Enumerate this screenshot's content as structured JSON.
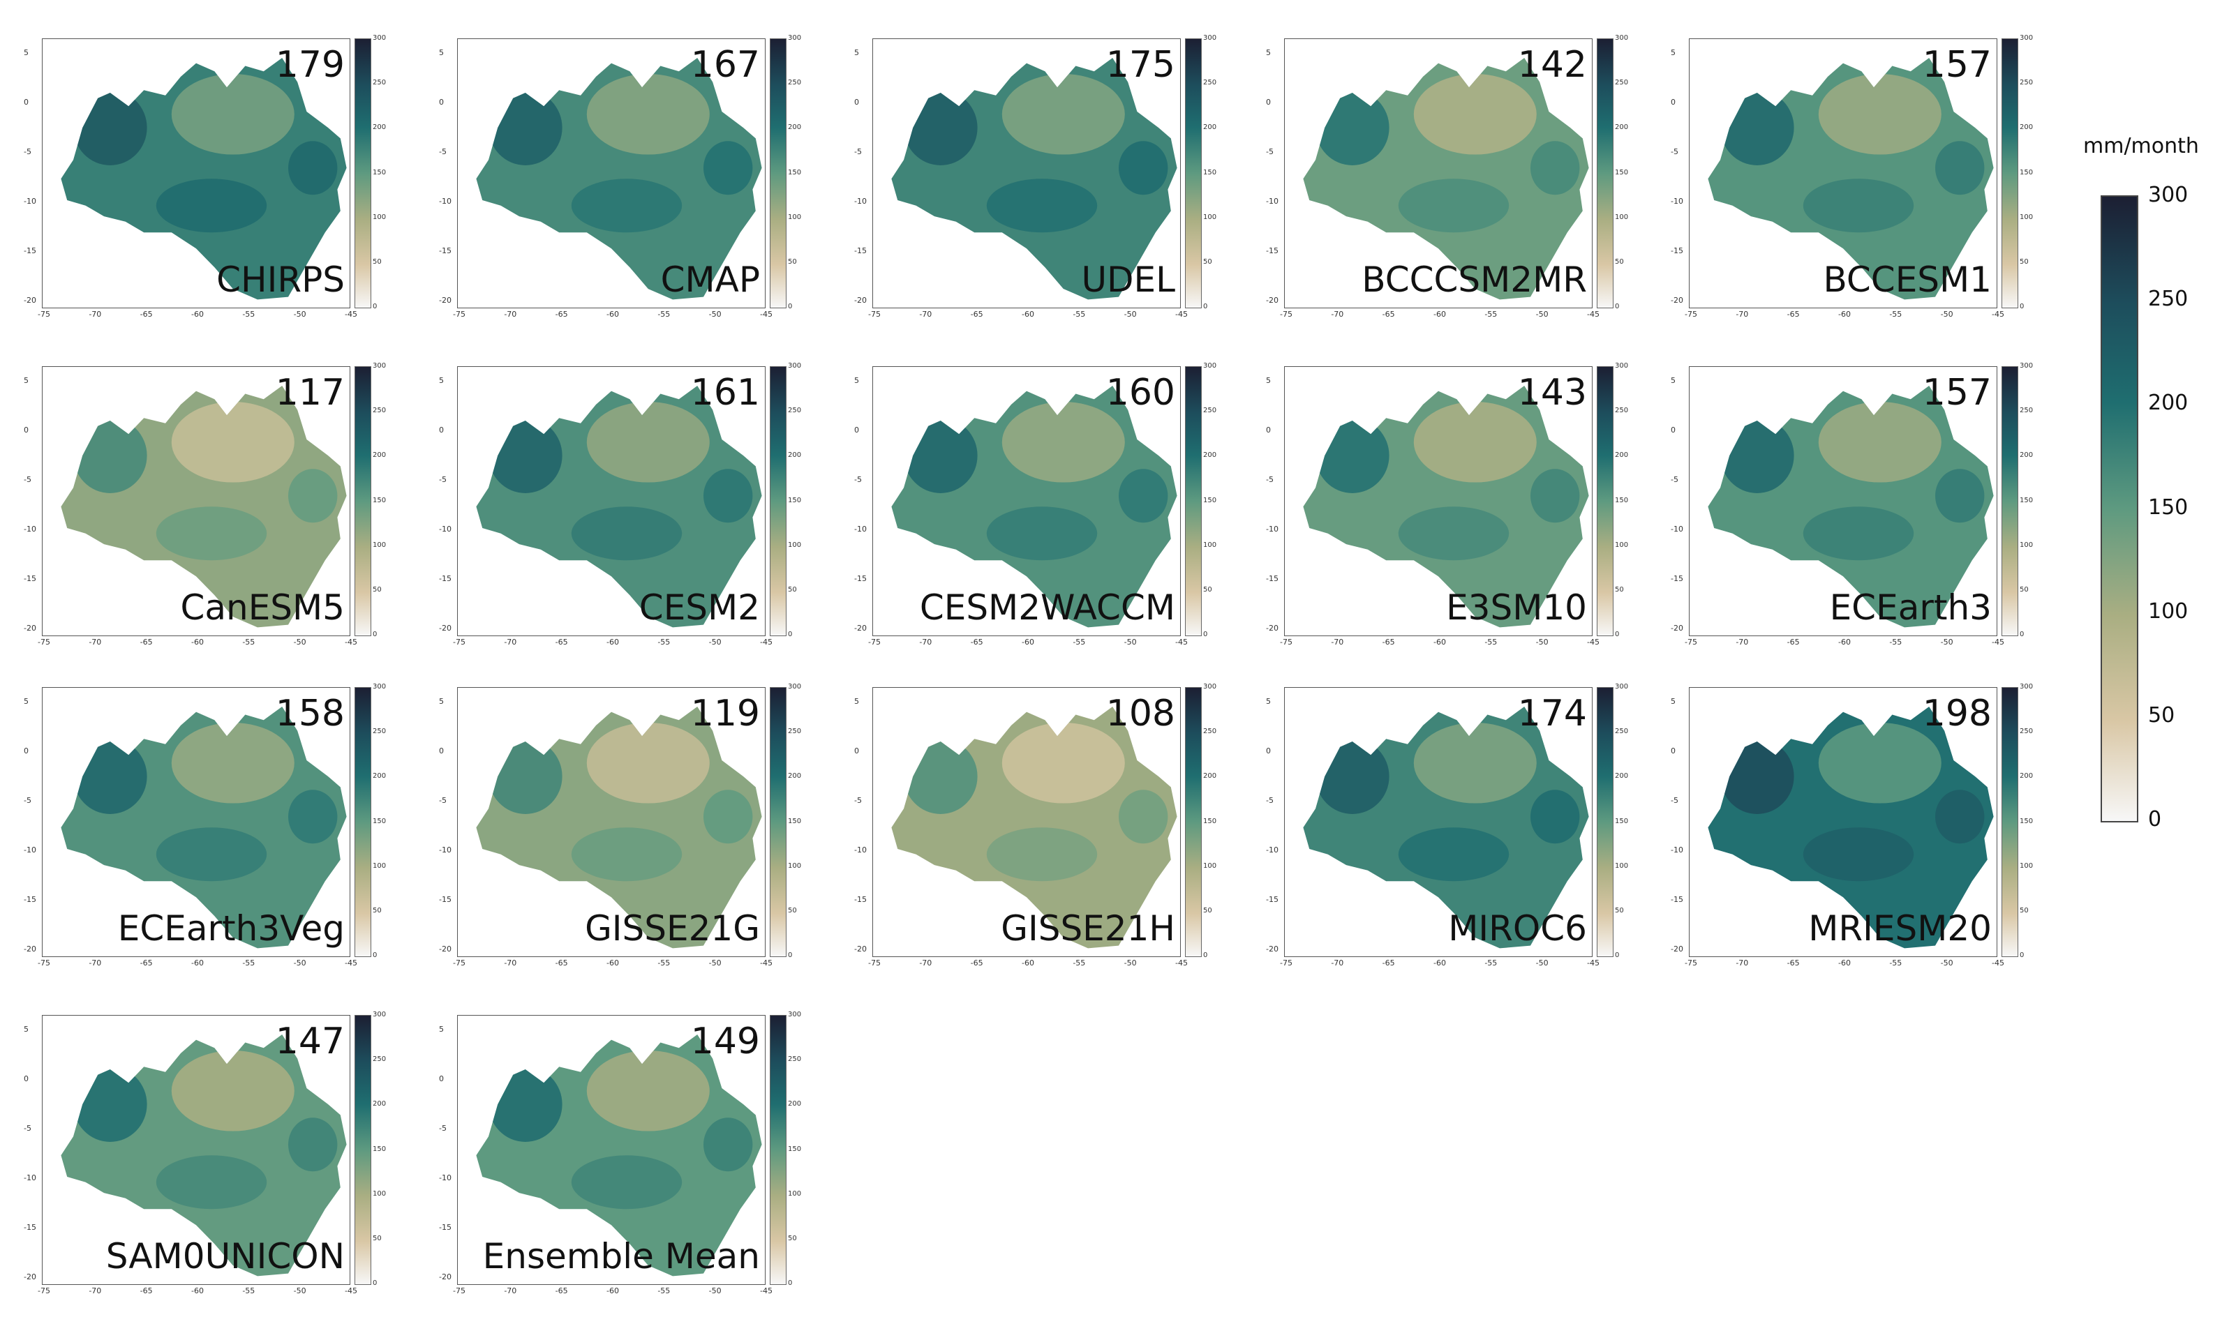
{
  "chart_data": {
    "type": "heatmap",
    "unit_label": "mm/month",
    "colorbar_ticks": [
      "0",
      "50",
      "100",
      "150",
      "200",
      "250",
      "300"
    ],
    "colorbar_range": [
      0,
      300
    ],
    "colors": [
      "#f7f7f7",
      "#d9c7a5",
      "#a9ae82",
      "#5e9a80",
      "#1f6e70",
      "#1d4d5c",
      "#1c1f33"
    ],
    "panel_x_ticks": [
      "-75",
      "-70",
      "-65",
      "-60",
      "-55",
      "-50",
      "-45"
    ],
    "panel_y_ticks": [
      "5",
      "0",
      "-5",
      "-10",
      "-15",
      "-20"
    ],
    "panel_cbar_ticks": [
      "300",
      "250",
      "200",
      "150",
      "100",
      "50",
      "0"
    ],
    "panels": [
      {
        "name": "CHIRPS",
        "value": "179",
        "level": 0.6
      },
      {
        "name": "CMAP",
        "value": "167",
        "level": 0.56
      },
      {
        "name": "UDEL",
        "value": "175",
        "level": 0.58
      },
      {
        "name": "BCCCSM2MR",
        "value": "142",
        "level": 0.47
      },
      {
        "name": "BCCESM1",
        "value": "157",
        "level": 0.52
      },
      {
        "name": "CanESM5",
        "value": "117",
        "level": 0.39
      },
      {
        "name": "CESM2",
        "value": "161",
        "level": 0.54
      },
      {
        "name": "CESM2WACCM",
        "value": "160",
        "level": 0.53
      },
      {
        "name": "E3SM10",
        "value": "143",
        "level": 0.48
      },
      {
        "name": "ECEarth3",
        "value": "157",
        "level": 0.52
      },
      {
        "name": "ECEarth3Veg",
        "value": "158",
        "level": 0.53
      },
      {
        "name": "GISSE21G",
        "value": "119",
        "level": 0.4
      },
      {
        "name": "GISSE21H",
        "value": "108",
        "level": 0.36
      },
      {
        "name": "MIROC6",
        "value": "174",
        "level": 0.58
      },
      {
        "name": "MRIESM20",
        "value": "198",
        "level": 0.66
      },
      {
        "name": "SAM0UNICON",
        "value": "147",
        "level": 0.49
      },
      {
        "name": "Ensemble Mean",
        "value": "149",
        "level": 0.5
      }
    ]
  }
}
